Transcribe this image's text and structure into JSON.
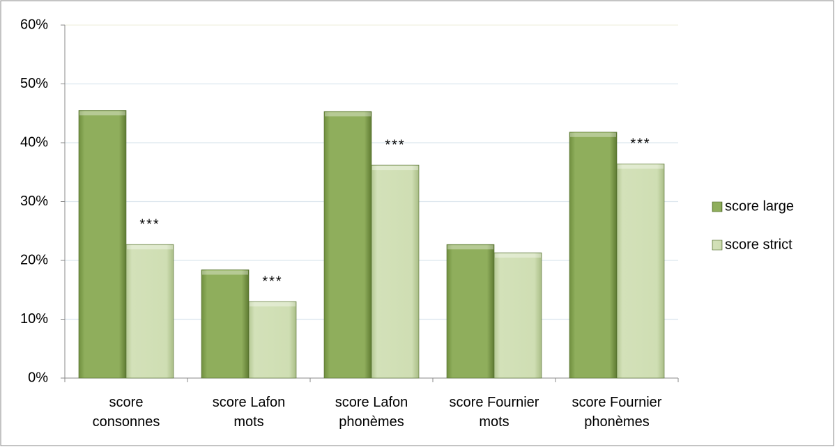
{
  "chart_data": {
    "type": "bar",
    "categories": [
      "score consonnes",
      "score Lafon mots",
      "score Lafon phonèmes",
      "score Fournier mots",
      "score Fournier phonèmes"
    ],
    "series": [
      {
        "name": "score large",
        "color": "#8fae5c",
        "values": [
          45.5,
          18.4,
          45.3,
          22.7,
          41.8
        ]
      },
      {
        "name": "score strict",
        "color": "#cfdeb3",
        "values": [
          22.7,
          13.0,
          36.2,
          21.3,
          36.4
        ]
      }
    ],
    "annotations": [
      {
        "text": "***",
        "series": 1,
        "category": 0
      },
      {
        "text": "***",
        "series": 1,
        "category": 1
      },
      {
        "text": "***",
        "series": 1,
        "category": 2
      },
      {
        "text": "***",
        "series": 1,
        "category": 4
      }
    ],
    "ylim": [
      0,
      60
    ],
    "yticks": [
      {
        "value": 0,
        "label": "0%"
      },
      {
        "value": 10,
        "label": "10%"
      },
      {
        "value": 20,
        "label": "20%"
      },
      {
        "value": 30,
        "label": "30%"
      },
      {
        "value": 40,
        "label": "40%"
      },
      {
        "value": 50,
        "label": "50%"
      },
      {
        "value": 60,
        "label": "60%"
      }
    ],
    "grid": true,
    "legend": "right"
  }
}
